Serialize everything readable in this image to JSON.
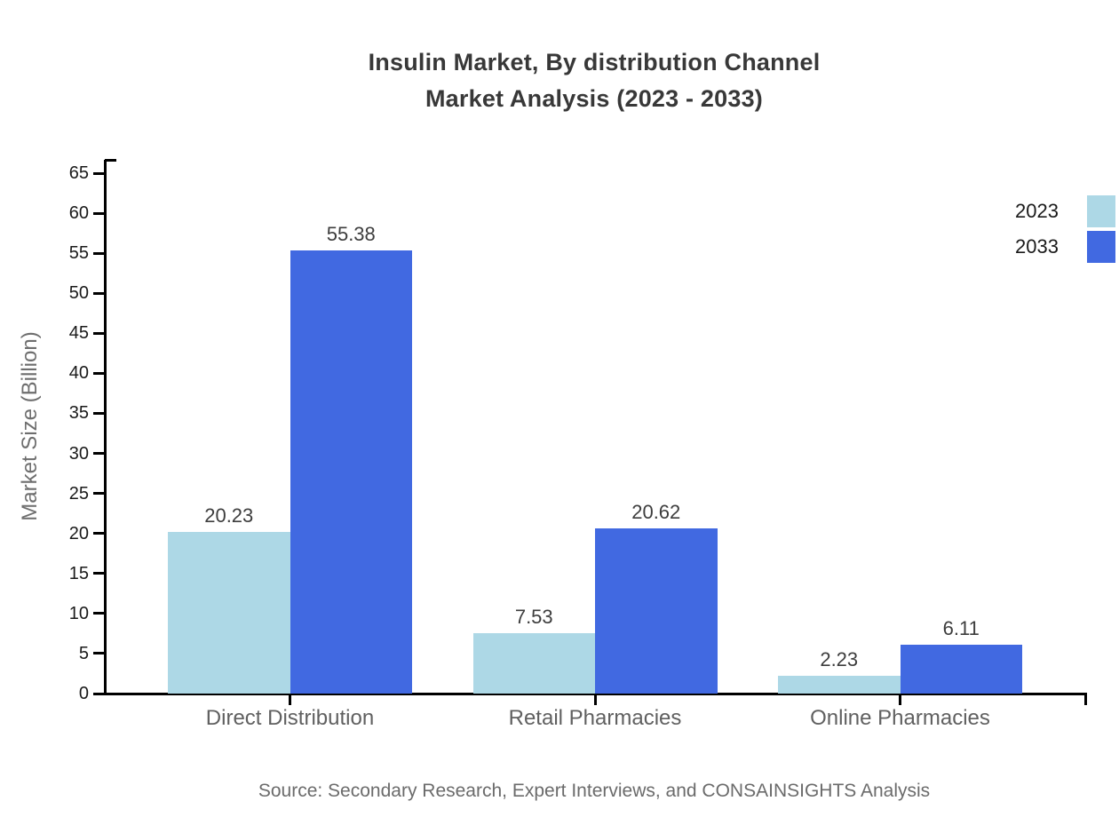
{
  "chart_data": {
    "type": "bar",
    "title_lines": [
      "Insulin Market, By distribution Channel",
      "Market Analysis (2023 - 2033)"
    ],
    "categories": [
      "Direct Distribution",
      "Retail Pharmacies",
      "Online Pharmacies"
    ],
    "series": [
      {
        "name": "2023",
        "color": "#add8e6",
        "values": [
          20.23,
          7.53,
          2.23
        ]
      },
      {
        "name": "2033",
        "color": "#4169e1",
        "values": [
          55.38,
          20.62,
          6.11
        ]
      }
    ],
    "value_labels": [
      "20.23",
      "55.38",
      "7.53",
      "20.62",
      "2.23",
      "6.11"
    ],
    "xlabel": "",
    "ylabel": "Market Size (Billion)",
    "ylim": [
      0,
      65
    ],
    "ytick_step": 5,
    "ytick_labels": [
      "0",
      "5",
      "10",
      "15",
      "20",
      "25",
      "30",
      "35",
      "40",
      "45",
      "50",
      "55",
      "60",
      "65"
    ],
    "grid": false,
    "legend_position": "top-right",
    "axis_color": "#000000",
    "source": "Source: Secondary Research, Expert Interviews, and CONSAINSIGHTS Analysis"
  }
}
